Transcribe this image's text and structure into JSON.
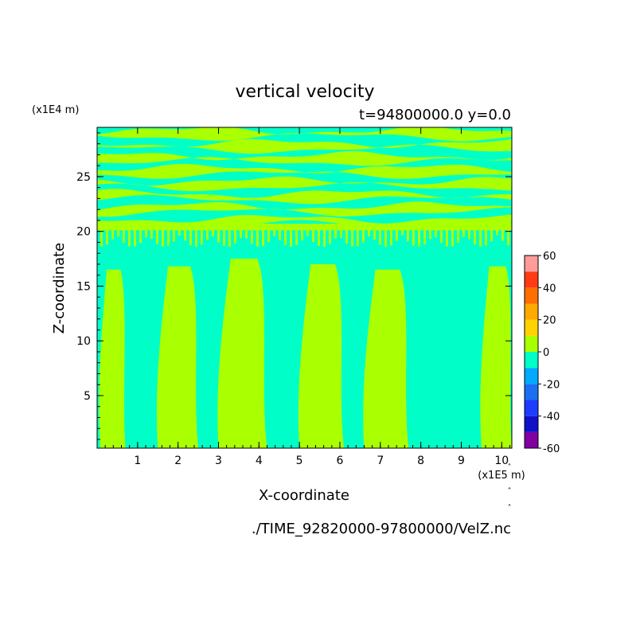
{
  "chart_data": {
    "type": "heatmap",
    "title": "vertical velocity",
    "subtitle": "t=94800000.0 y=0.0",
    "xlabel": "X-coordinate",
    "ylabel": "Z-coordinate",
    "x_unit": "(x1E5 m)",
    "y_unit": "(x1E4 m)",
    "source_file": "./TIME_92820000-97800000/VelZ.nc",
    "xlim": [
      0,
      10.25
    ],
    "ylim": [
      0.2,
      29.5
    ],
    "x_ticks": [
      "1",
      "2",
      "3",
      "4",
      "5",
      "6",
      "7",
      "8",
      "9",
      "10"
    ],
    "y_ticks": [
      "5",
      "10",
      "15",
      "20",
      "25"
    ],
    "colorbar": {
      "tick_labels": [
        "60",
        "40",
        "20",
        "0",
        "-20",
        "-40",
        "-60"
      ],
      "levels": [
        {
          "range": [
            -60,
            -50
          ],
          "color": "#8000a0"
        },
        {
          "range": [
            -50,
            -40
          ],
          "color": "#1010c8"
        },
        {
          "range": [
            -40,
            -30
          ],
          "color": "#1e3cff"
        },
        {
          "range": [
            -30,
            -20
          ],
          "color": "#1c6ff0"
        },
        {
          "range": [
            -20,
            -10
          ],
          "color": "#00aaff"
        },
        {
          "range": [
            -10,
            0
          ],
          "color": "#00ffc8"
        },
        {
          "range": [
            0,
            10
          ],
          "color": "#aaff00"
        },
        {
          "range": [
            10,
            20
          ],
          "color": "#ffd200"
        },
        {
          "range": [
            20,
            30
          ],
          "color": "#ffaa00"
        },
        {
          "range": [
            30,
            40
          ],
          "color": "#ff6e00"
        },
        {
          "range": [
            40,
            50
          ],
          "color": "#ff3c14"
        },
        {
          "range": [
            50,
            60
          ],
          "color": "#ff9b9b"
        }
      ]
    },
    "updraft_columns_lower": [
      {
        "x_range": [
          0.08,
          0.7
        ],
        "z_range": [
          0.2,
          16.5
        ]
      },
      {
        "x_range": [
          1.5,
          2.5
        ],
        "z_range": [
          0.2,
          16.8
        ]
      },
      {
        "x_range": [
          3.0,
          4.2
        ],
        "z_range": [
          0.2,
          17.5
        ]
      },
      {
        "x_range": [
          5.0,
          6.1
        ],
        "z_range": [
          0.2,
          17.0
        ]
      },
      {
        "x_range": [
          6.6,
          7.7
        ],
        "z_range": [
          0.2,
          16.5
        ]
      },
      {
        "x_range": [
          9.5,
          10.25
        ],
        "z_range": [
          0.2,
          16.8
        ]
      }
    ]
  }
}
